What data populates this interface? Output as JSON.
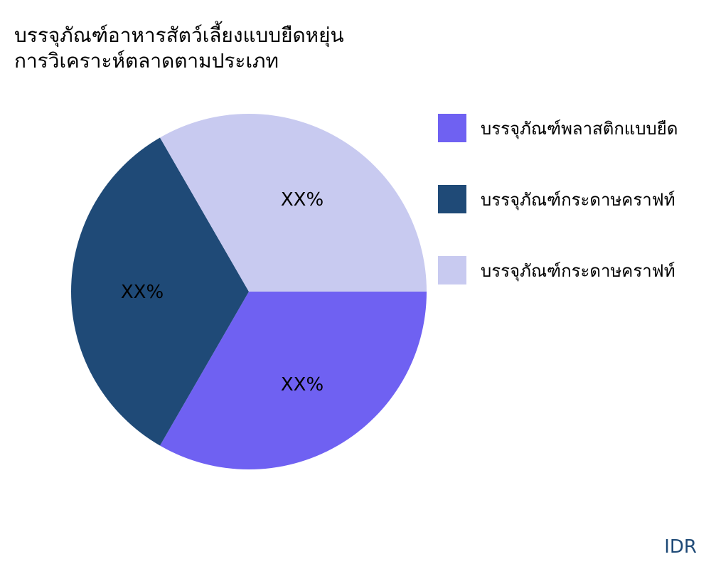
{
  "chart_data": {
    "type": "pie",
    "title": "บรรจุภัณฑ์อาหารสัตว์เลี้ยงแบบยืดหยุ่น\nการวิเคราะห์ตลาดตามประเภท",
    "slices": [
      {
        "name": "บรรจุภัณฑ์พลาสติกแบบยืด",
        "value": 33.33,
        "label": "XX%",
        "color": "#6f61f2"
      },
      {
        "name": "บรรจุภัณฑ์กระดาษคราฟท์",
        "value": 33.33,
        "label": "XX%",
        "color": "#1f4a77"
      },
      {
        "name": "บรรจุภัณฑ์กระดาษคราฟท์",
        "value": 33.33,
        "label": "XX%",
        "color": "#c8caf0"
      }
    ],
    "legend_position": "right"
  },
  "source": "IDR"
}
